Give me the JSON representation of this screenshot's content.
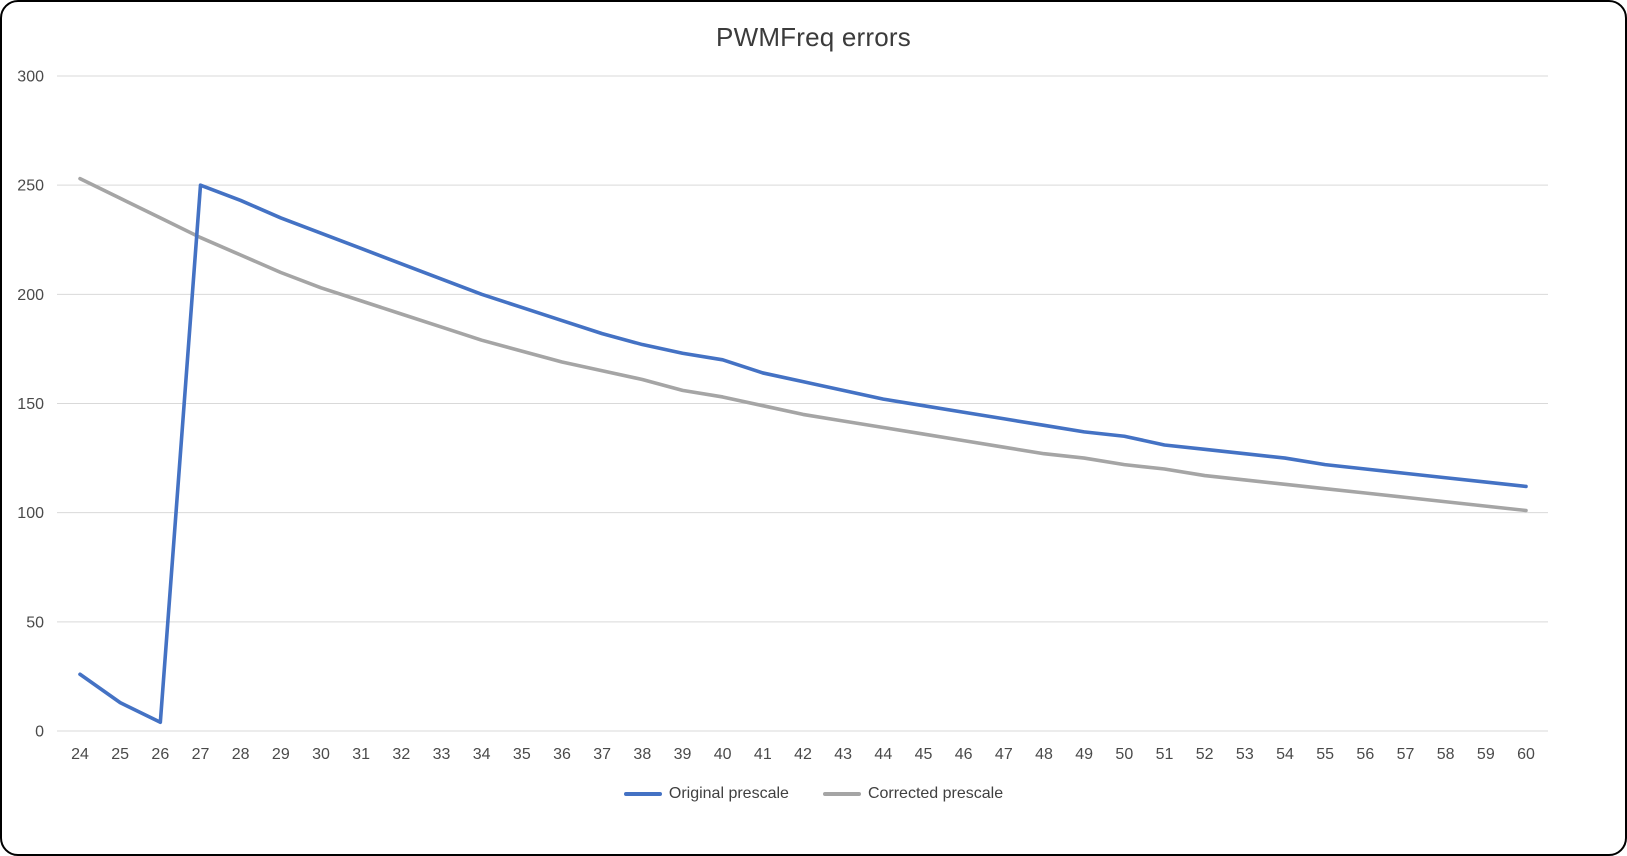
{
  "title": "PWMFreq errors",
  "chart_data": {
    "type": "line",
    "title": "PWMFreq errors",
    "xlabel": "",
    "ylabel": "",
    "x": [
      24,
      25,
      26,
      27,
      28,
      29,
      30,
      31,
      32,
      33,
      34,
      35,
      36,
      37,
      38,
      39,
      40,
      41,
      42,
      43,
      44,
      45,
      46,
      47,
      48,
      49,
      50,
      51,
      52,
      53,
      54,
      55,
      56,
      57,
      58,
      59,
      60
    ],
    "series": [
      {
        "name": "Original prescale",
        "color": "#4472c4",
        "values": [
          26,
          13,
          4,
          250,
          243,
          235,
          228,
          221,
          214,
          207,
          200,
          194,
          188,
          182,
          177,
          173,
          170,
          164,
          160,
          156,
          152,
          149,
          146,
          143,
          140,
          137,
          135,
          131,
          129,
          127,
          125,
          122,
          120,
          118,
          116,
          114,
          112
        ]
      },
      {
        "name": "Corrected prescale",
        "color": "#a5a5a5",
        "values": [
          253,
          244,
          235,
          226,
          218,
          210,
          203,
          197,
          191,
          185,
          179,
          174,
          169,
          165,
          161,
          156,
          153,
          149,
          145,
          142,
          139,
          136,
          133,
          130,
          127,
          125,
          122,
          120,
          117,
          115,
          113,
          111,
          109,
          107,
          105,
          103,
          101
        ]
      }
    ],
    "ylim": [
      0,
      300
    ],
    "yticks": [
      0,
      50,
      100,
      150,
      200,
      250,
      300
    ],
    "grid": true,
    "grid_color": "#d9d9d9",
    "legend_position": "bottom"
  }
}
